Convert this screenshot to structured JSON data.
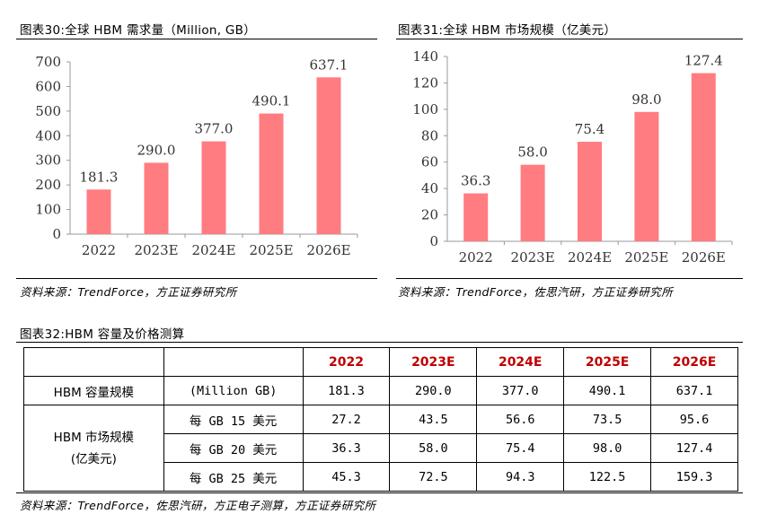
{
  "figure30": {
    "title": "图表30:全球 HBM 需求量（Million, GB）",
    "source": "资料来源：TrendForce，方正证券研究所",
    "chart_data": {
      "type": "bar",
      "title": "全球 HBM 需求量（Million, GB）",
      "categories": [
        "2022",
        "2023E",
        "2024E",
        "2025E",
        "2026E"
      ],
      "values": [
        181.3,
        290.0,
        377.0,
        490.1,
        637.1
      ],
      "value_labels": [
        "181.3",
        "290.0",
        "377.0",
        "490.1",
        "637.1"
      ],
      "ylim": [
        0,
        700
      ],
      "yticks": [
        0,
        100,
        200,
        300,
        400,
        500,
        600,
        700
      ],
      "xlabel": "",
      "ylabel": "",
      "bar_color": "#ff7c80",
      "grid": false
    }
  },
  "figure31": {
    "title": "图表31:全球 HBM 市场规模（亿美元）",
    "source": "资料来源：TrendForce，佐思汽研，方正证券研究所",
    "chart_data": {
      "type": "bar",
      "title": "全球 HBM 市场规模（亿美元）",
      "categories": [
        "2022",
        "2023E",
        "2024E",
        "2025E",
        "2026E"
      ],
      "values": [
        36.3,
        58.0,
        75.4,
        98.0,
        127.4
      ],
      "value_labels": [
        "36.3",
        "58.0",
        "75.4",
        "98.0",
        "127.4"
      ],
      "ylim": [
        0,
        140
      ],
      "yticks": [
        0,
        20,
        40,
        60,
        80,
        100,
        120,
        140
      ],
      "xlabel": "",
      "ylabel": "",
      "bar_color": "#ff7c80",
      "grid": false
    }
  },
  "figure32": {
    "title": "图表32:HBM 容量及价格测算",
    "source": "资料来源：TrendForce，佐思汽研，方正电子测算，方正证券研究所",
    "header_color": "#c00000",
    "years": [
      "2022",
      "2023E",
      "2024E",
      "2025E",
      "2026E"
    ],
    "capacity": {
      "label": "HBM 容量规模",
      "unit": "(Million GB)",
      "values": [
        "181.3",
        "290.0",
        "377.0",
        "490.1",
        "637.1"
      ]
    },
    "market": {
      "label_line1": "HBM 市场规模",
      "label_line2": "(亿美元)",
      "rows": [
        {
          "label": "每 GB 15 美元",
          "values": [
            "27.2",
            "43.5",
            "56.6",
            "73.5",
            "95.6"
          ]
        },
        {
          "label": "每 GB 20 美元",
          "values": [
            "36.3",
            "58.0",
            "75.4",
            "98.0",
            "127.4"
          ]
        },
        {
          "label": "每 GB 25 美元",
          "values": [
            "45.3",
            "72.5",
            "94.3",
            "122.5",
            "159.3"
          ]
        }
      ]
    }
  }
}
